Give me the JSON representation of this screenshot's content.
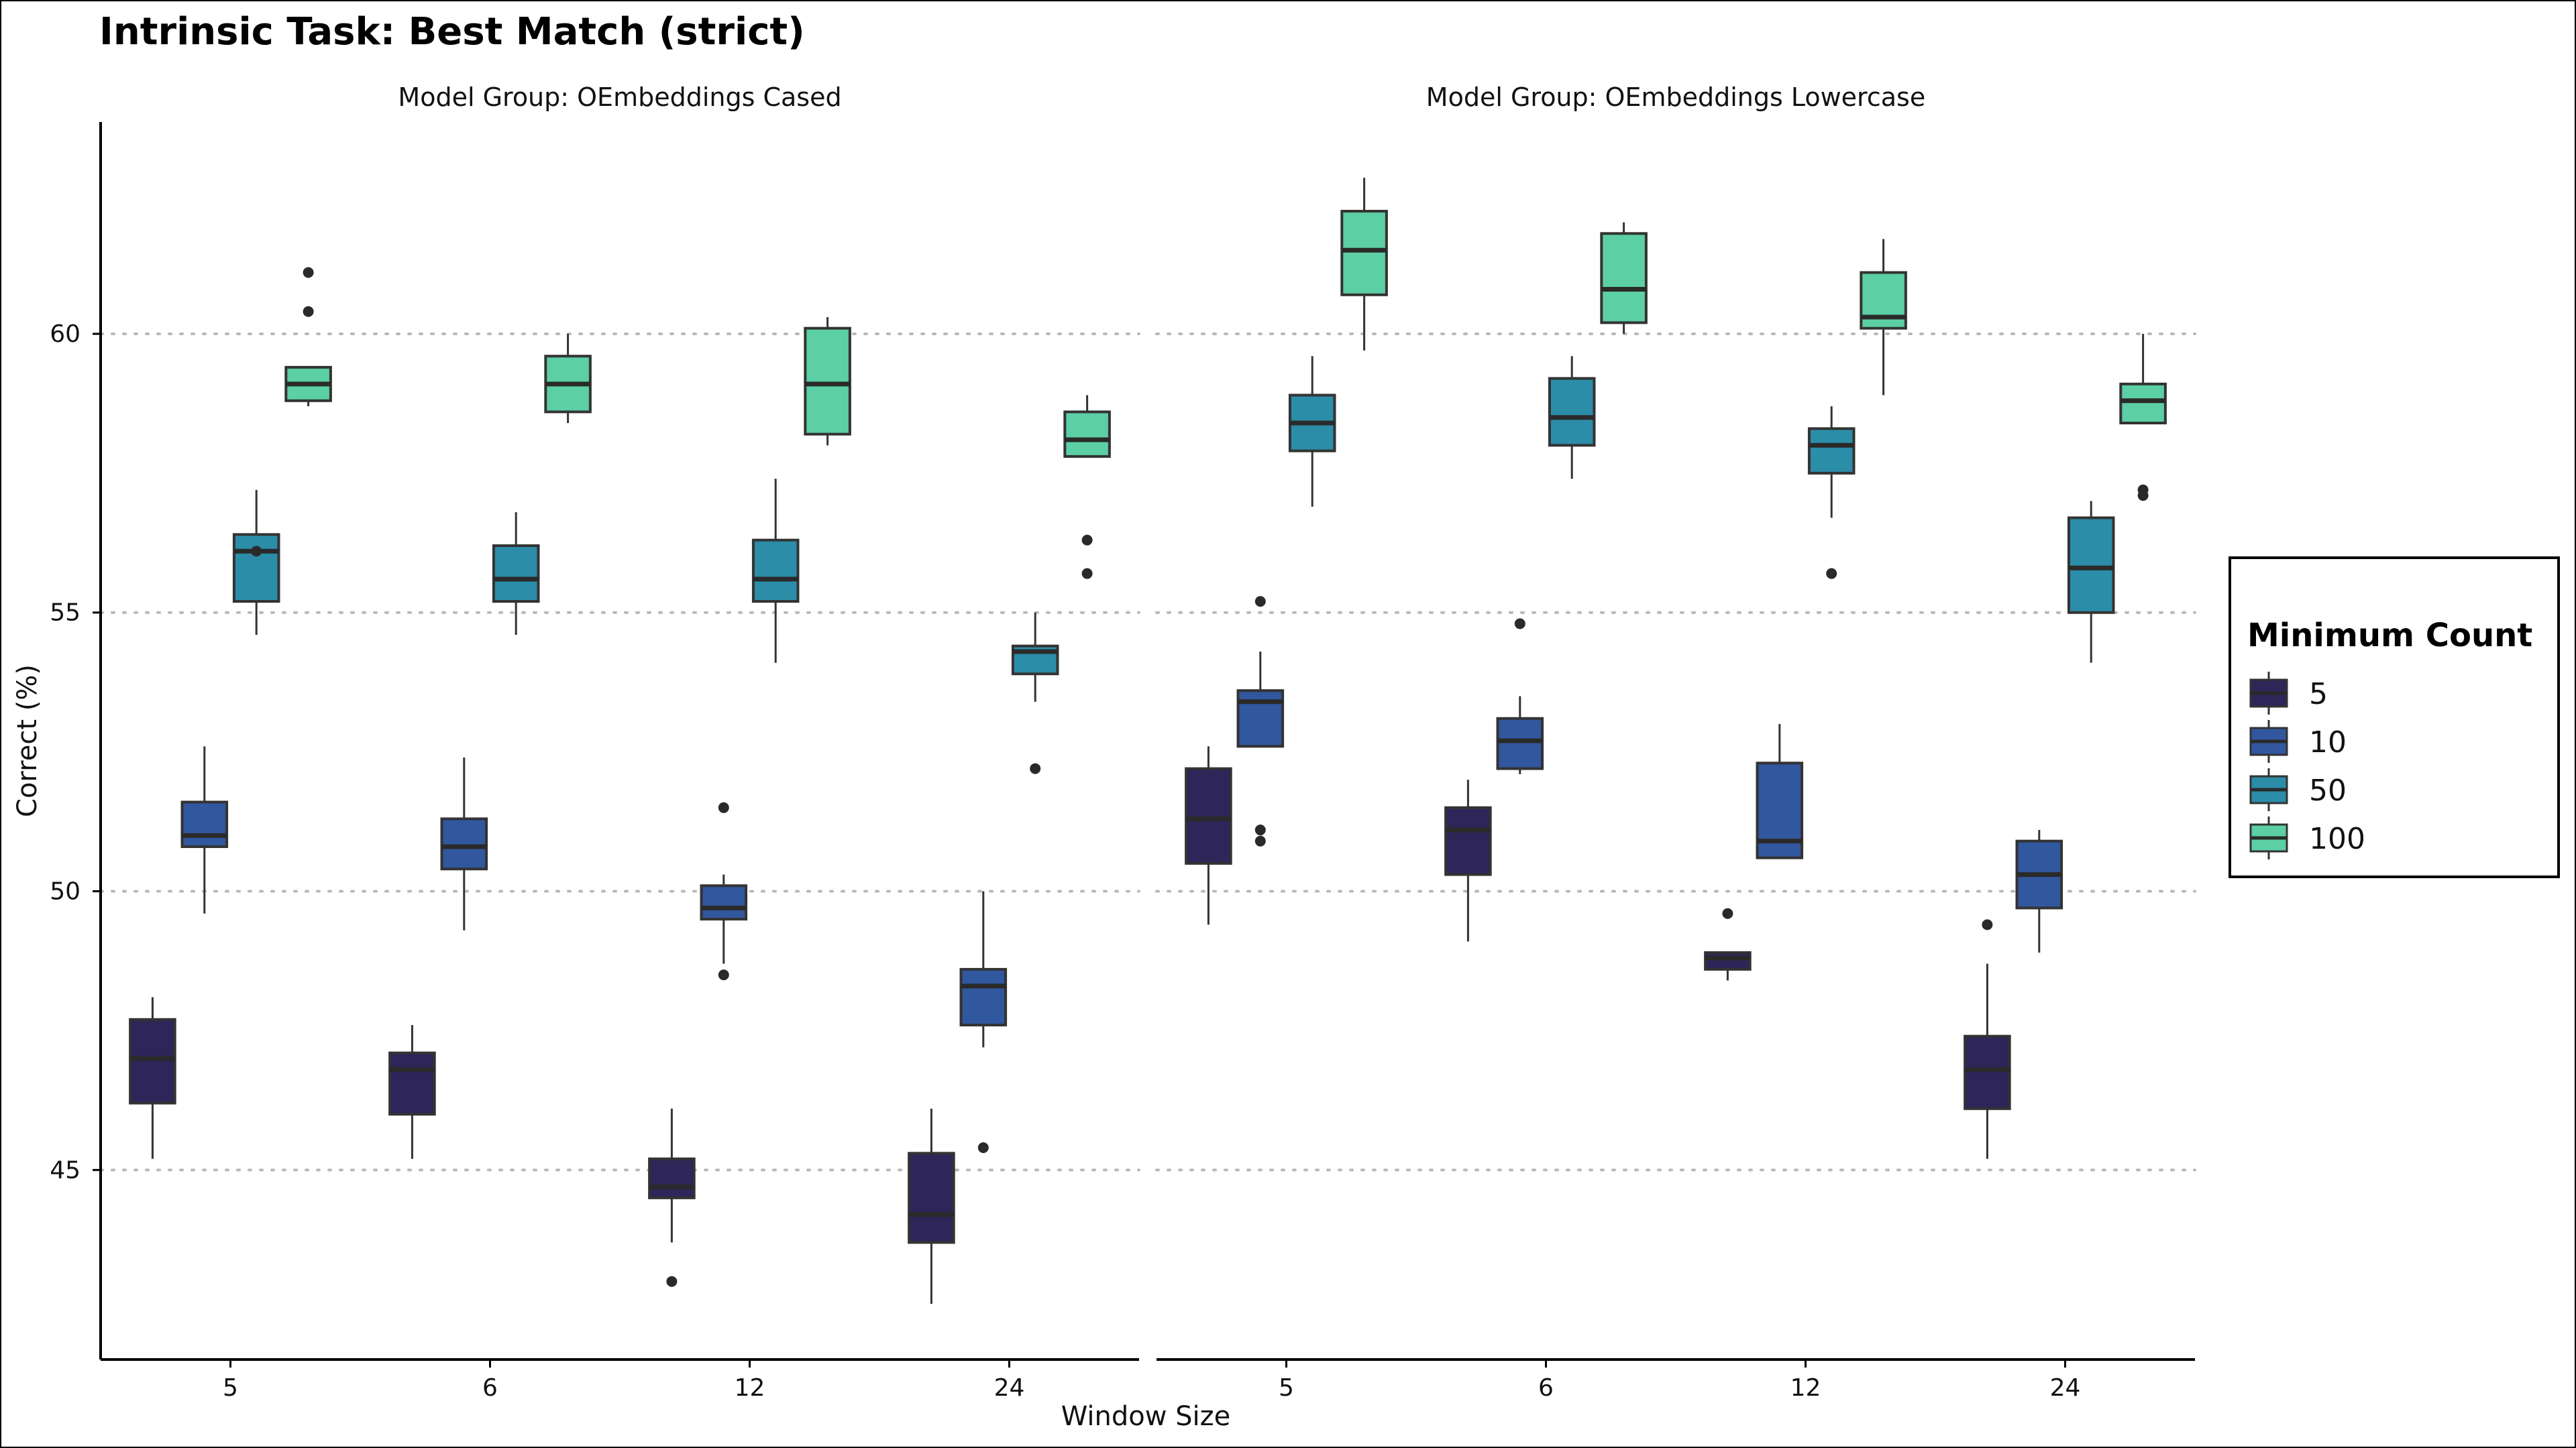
{
  "chart_data": {
    "type": "box",
    "title": "Intrinsic Task: Best Match (strict)",
    "xlabel": "Window Size",
    "ylabel": "Correct (%)",
    "ylim": [
      41.6,
      63.8
    ],
    "y_ticks": [
      45,
      50,
      55,
      60
    ],
    "categories": [
      "5",
      "6",
      "12",
      "24"
    ],
    "grid": "horizontal dotted",
    "legend": {
      "title": "Minimum Count",
      "placement": "right",
      "entries": [
        {
          "label": "5",
          "color": "#2e2558"
        },
        {
          "label": "10",
          "color": "#31579e"
        },
        {
          "label": "50",
          "color": "#2b8da8"
        },
        {
          "label": "100",
          "color": "#5ccfa4"
        }
      ]
    },
    "panels": [
      {
        "facet_label": "Model Group: OEmbeddings Cased",
        "boxes": [
          {
            "window": "5",
            "min_count": "5",
            "whisker_low": 45.2,
            "q1": 46.2,
            "median": 47.0,
            "q3": 47.7,
            "whisker_high": 48.1,
            "outliers": []
          },
          {
            "window": "5",
            "min_count": "10",
            "whisker_low": 49.6,
            "q1": 50.8,
            "median": 51.0,
            "q3": 51.6,
            "whisker_high": 52.6,
            "outliers": []
          },
          {
            "window": "5",
            "min_count": "50",
            "whisker_low": 54.6,
            "q1": 55.2,
            "median": 56.1,
            "q3": 56.4,
            "whisker_high": 57.2,
            "outliers": [
              56.1
            ]
          },
          {
            "window": "5",
            "min_count": "100",
            "whisker_low": 58.7,
            "q1": 58.8,
            "median": 59.1,
            "q3": 59.4,
            "whisker_high": 59.4,
            "outliers": [
              61.1,
              60.4
            ]
          },
          {
            "window": "6",
            "min_count": "5",
            "whisker_low": 45.2,
            "q1": 46.0,
            "median": 46.8,
            "q3": 47.1,
            "whisker_high": 47.6,
            "outliers": []
          },
          {
            "window": "6",
            "min_count": "10",
            "whisker_low": 49.3,
            "q1": 50.4,
            "median": 50.8,
            "q3": 51.3,
            "whisker_high": 52.4,
            "outliers": []
          },
          {
            "window": "6",
            "min_count": "50",
            "whisker_low": 54.6,
            "q1": 55.2,
            "median": 55.6,
            "q3": 56.2,
            "whisker_high": 56.8,
            "outliers": []
          },
          {
            "window": "6",
            "min_count": "100",
            "whisker_low": 58.4,
            "q1": 58.6,
            "median": 59.1,
            "q3": 59.6,
            "whisker_high": 60.0,
            "outliers": []
          },
          {
            "window": "12",
            "min_count": "5",
            "whisker_low": 43.7,
            "q1": 44.5,
            "median": 44.7,
            "q3": 45.2,
            "whisker_high": 46.1,
            "outliers": [
              43.0
            ]
          },
          {
            "window": "12",
            "min_count": "10",
            "whisker_low": 48.7,
            "q1": 49.5,
            "median": 49.7,
            "q3": 50.1,
            "whisker_high": 50.3,
            "outliers": [
              51.5,
              48.5
            ]
          },
          {
            "window": "12",
            "min_count": "50",
            "whisker_low": 54.1,
            "q1": 55.2,
            "median": 55.6,
            "q3": 56.3,
            "whisker_high": 57.4,
            "outliers": []
          },
          {
            "window": "12",
            "min_count": "100",
            "whisker_low": 58.0,
            "q1": 58.2,
            "median": 59.1,
            "q3": 60.1,
            "whisker_high": 60.3,
            "outliers": []
          },
          {
            "window": "24",
            "min_count": "5",
            "whisker_low": 42.6,
            "q1": 43.7,
            "median": 44.2,
            "q3": 45.3,
            "whisker_high": 46.1,
            "outliers": []
          },
          {
            "window": "24",
            "min_count": "10",
            "whisker_low": 47.2,
            "q1": 47.6,
            "median": 48.3,
            "q3": 48.6,
            "whisker_high": 50.0,
            "outliers": [
              45.4
            ]
          },
          {
            "window": "24",
            "min_count": "50",
            "whisker_low": 53.4,
            "q1": 53.9,
            "median": 54.3,
            "q3": 54.4,
            "whisker_high": 55.0,
            "outliers": [
              52.2
            ]
          },
          {
            "window": "24",
            "min_count": "100",
            "whisker_low": 57.8,
            "q1": 57.8,
            "median": 58.1,
            "q3": 58.6,
            "whisker_high": 58.9,
            "outliers": [
              56.3,
              55.7
            ]
          }
        ]
      },
      {
        "facet_label": "Model Group: OEmbeddings Lowercase",
        "boxes": [
          {
            "window": "5",
            "min_count": "5",
            "whisker_low": 49.4,
            "q1": 50.5,
            "median": 51.3,
            "q3": 52.2,
            "whisker_high": 52.6,
            "outliers": []
          },
          {
            "window": "5",
            "min_count": "10",
            "whisker_low": 52.6,
            "q1": 52.6,
            "median": 53.4,
            "q3": 53.6,
            "whisker_high": 54.3,
            "outliers": [
              55.2,
              51.1,
              50.9
            ]
          },
          {
            "window": "5",
            "min_count": "50",
            "whisker_low": 56.9,
            "q1": 57.9,
            "median": 58.4,
            "q3": 58.9,
            "whisker_high": 59.6,
            "outliers": []
          },
          {
            "window": "5",
            "min_count": "100",
            "whisker_low": 59.7,
            "q1": 60.7,
            "median": 61.5,
            "q3": 62.2,
            "whisker_high": 62.8,
            "outliers": []
          },
          {
            "window": "6",
            "min_count": "5",
            "whisker_low": 49.1,
            "q1": 50.3,
            "median": 51.1,
            "q3": 51.5,
            "whisker_high": 52.0,
            "outliers": []
          },
          {
            "window": "6",
            "min_count": "10",
            "whisker_low": 52.1,
            "q1": 52.2,
            "median": 52.7,
            "q3": 53.1,
            "whisker_high": 53.5,
            "outliers": [
              54.8
            ]
          },
          {
            "window": "6",
            "min_count": "50",
            "whisker_low": 57.4,
            "q1": 58.0,
            "median": 58.5,
            "q3": 59.2,
            "whisker_high": 59.6,
            "outliers": []
          },
          {
            "window": "6",
            "min_count": "100",
            "whisker_low": 60.0,
            "q1": 60.2,
            "median": 60.8,
            "q3": 61.8,
            "whisker_high": 62.0,
            "outliers": []
          },
          {
            "window": "12",
            "min_count": "5",
            "whisker_low": 48.4,
            "q1": 48.6,
            "median": 48.8,
            "q3": 48.9,
            "whisker_high": 48.9,
            "outliers": [
              49.6
            ]
          },
          {
            "window": "12",
            "min_count": "10",
            "whisker_low": 50.6,
            "q1": 50.6,
            "median": 50.9,
            "q3": 52.3,
            "whisker_high": 53.0,
            "outliers": []
          },
          {
            "window": "12",
            "min_count": "50",
            "whisker_low": 56.7,
            "q1": 57.5,
            "median": 58.0,
            "q3": 58.3,
            "whisker_high": 58.7,
            "outliers": [
              55.7
            ]
          },
          {
            "window": "12",
            "min_count": "100",
            "whisker_low": 58.9,
            "q1": 60.1,
            "median": 60.3,
            "q3": 61.1,
            "whisker_high": 61.7,
            "outliers": []
          },
          {
            "window": "24",
            "min_count": "5",
            "whisker_low": 45.2,
            "q1": 46.1,
            "median": 46.8,
            "q3": 47.4,
            "whisker_high": 48.7,
            "outliers": [
              49.4
            ]
          },
          {
            "window": "24",
            "min_count": "10",
            "whisker_low": 48.9,
            "q1": 49.7,
            "median": 50.3,
            "q3": 50.9,
            "whisker_high": 51.1,
            "outliers": []
          },
          {
            "window": "24",
            "min_count": "50",
            "whisker_low": 54.1,
            "q1": 55.0,
            "median": 55.8,
            "q3": 56.7,
            "whisker_high": 57.0,
            "outliers": []
          },
          {
            "window": "24",
            "min_count": "100",
            "whisker_low": 58.4,
            "q1": 58.4,
            "median": 58.8,
            "q3": 59.1,
            "whisker_high": 60.0,
            "outliers": [
              57.2,
              57.1
            ]
          }
        ]
      }
    ]
  }
}
